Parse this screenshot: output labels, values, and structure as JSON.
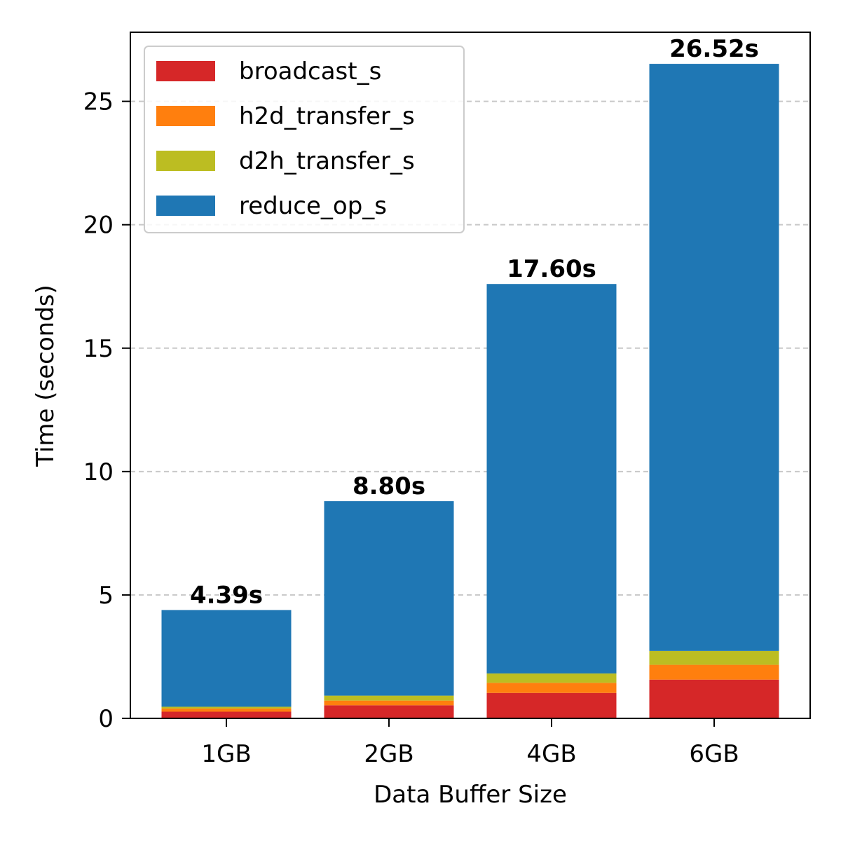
{
  "chart_data": {
    "type": "bar",
    "stacked": true,
    "title": "",
    "xlabel": "Data Buffer Size",
    "ylabel": "Time (seconds)",
    "categories": [
      "1GB",
      "2GB",
      "4GB",
      "6GB"
    ],
    "ylim": [
      0,
      27.8
    ],
    "yticks": [
      0,
      5,
      10,
      15,
      20,
      25
    ],
    "grid": "y-dashed",
    "legend_position": "top-left",
    "series": [
      {
        "name": "broadcast_s",
        "color": "#d62728",
        "values": [
          0.27,
          0.53,
          1.03,
          1.57
        ]
      },
      {
        "name": "h2d_transfer_s",
        "color": "#ff7f0e",
        "values": [
          0.13,
          0.19,
          0.41,
          0.6
        ]
      },
      {
        "name": "d2h_transfer_s",
        "color": "#bcbd22",
        "values": [
          0.07,
          0.2,
          0.38,
          0.56
        ]
      },
      {
        "name": "reduce_op_s",
        "color": "#1f77b4",
        "values": [
          3.92,
          7.88,
          15.78,
          23.79
        ]
      }
    ],
    "totals": [
      4.39,
      8.8,
      17.6,
      26.52
    ],
    "total_labels": [
      "4.39s",
      "8.80s",
      "17.60s",
      "26.52s"
    ]
  }
}
